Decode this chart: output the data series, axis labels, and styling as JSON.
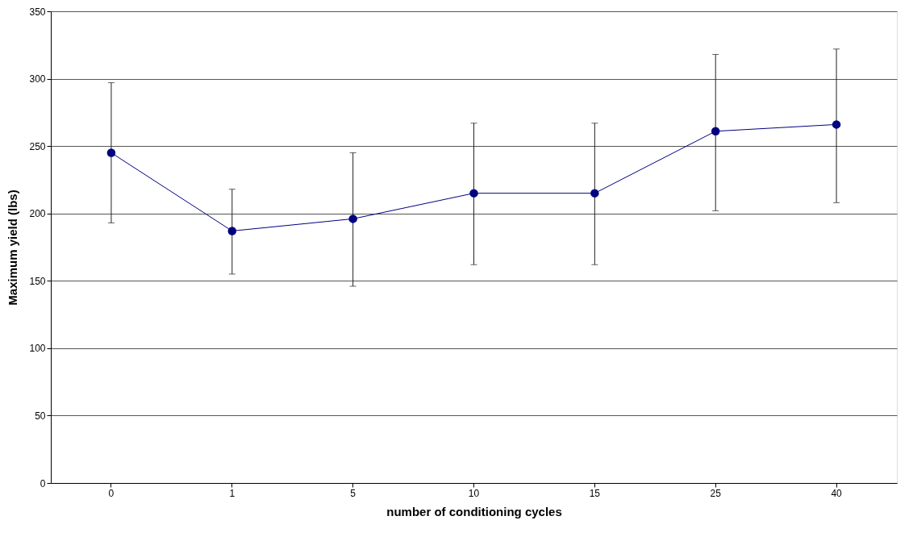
{
  "chart_data": {
    "type": "line",
    "xlabel": "number of conditioning cycles",
    "ylabel": "Maximum yield (lbs)",
    "categories": [
      "0",
      "1",
      "5",
      "10",
      "15",
      "25",
      "40"
    ],
    "series": [
      {
        "color": "#000080",
        "values": [
          245,
          187,
          196,
          215,
          215,
          261,
          266
        ],
        "errors": [
          [
            193,
            297
          ],
          [
            155,
            218
          ],
          [
            146,
            245
          ],
          [
            162,
            267
          ],
          [
            162,
            267
          ],
          [
            202,
            318
          ],
          [
            208,
            322
          ]
        ]
      }
    ],
    "ylim": [
      0,
      350
    ],
    "yticks": [
      0,
      50,
      100,
      150,
      200,
      250,
      300,
      350
    ],
    "grid": "y",
    "marker": "circle"
  }
}
